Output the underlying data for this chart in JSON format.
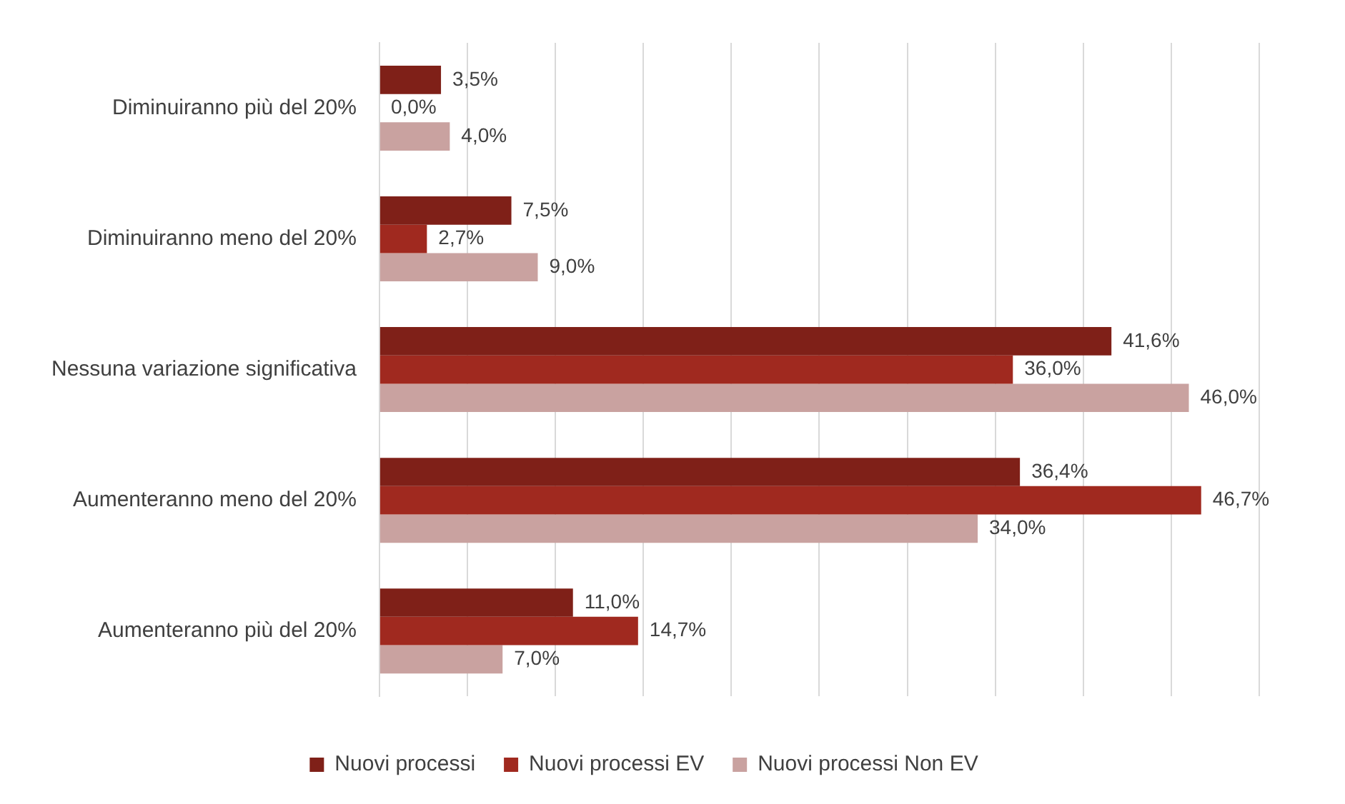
{
  "chart_data": {
    "type": "bar",
    "orientation": "horizontal",
    "categories": [
      "Diminuiranno più del 20%",
      "Diminuiranno meno del 20%",
      "Nessuna variazione significativa",
      "Aumenteranno meno del 20%",
      "Aumenteranno più del 20%"
    ],
    "series": [
      {
        "name": "Nuovi processi",
        "color": "#7f2018",
        "values": [
          3.5,
          7.5,
          41.6,
          36.4,
          11.0
        ],
        "value_labels": [
          "3,5%",
          "7,5%",
          "41,6%",
          "36,4%",
          "11,0%"
        ]
      },
      {
        "name": "Nuovi processi EV",
        "color": "#a0291f",
        "values": [
          0.0,
          2.7,
          36.0,
          46.7,
          14.7
        ],
        "value_labels": [
          "0,0%",
          "2,7%",
          "36,0%",
          "46,7%",
          "14,7%"
        ]
      },
      {
        "name": "Nuovi processi Non EV",
        "color": "#c9a2a0",
        "values": [
          4.0,
          9.0,
          46.0,
          34.0,
          7.0
        ],
        "value_labels": [
          "4,0%",
          "9,0%",
          "46,0%",
          "34,0%",
          "7,0%"
        ]
      }
    ],
    "xlim": [
      0,
      50
    ],
    "xticks": [
      {
        "value": 0,
        "label": null
      },
      {
        "value": 5,
        "label": null
      },
      {
        "value": 10,
        "label": null
      },
      {
        "value": 15,
        "label": null
      },
      {
        "value": 20,
        "label": null
      },
      {
        "value": 25,
        "label": null
      },
      {
        "value": 30,
        "label": null
      },
      {
        "value": 35,
        "label": null
      },
      {
        "value": 40,
        "label": null
      },
      {
        "value": 45,
        "label": null
      },
      {
        "value": 50,
        "label": null
      }
    ],
    "grid": "x",
    "legend": "bottom"
  }
}
